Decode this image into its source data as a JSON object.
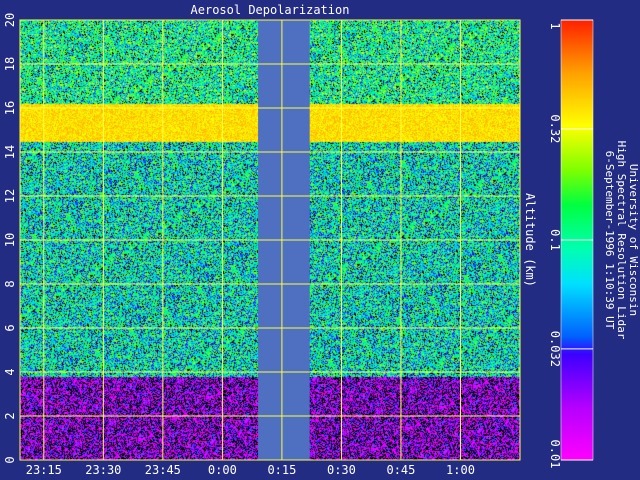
{
  "chart_data": {
    "type": "heatmap",
    "title": "Aerosol Depolarization",
    "ylabel": "Altitude (km)",
    "xlabel": "",
    "y_ticks": [
      "0",
      "2",
      "4",
      "6",
      "8",
      "10",
      "12",
      "14",
      "16",
      "18",
      "20"
    ],
    "ylim": [
      0,
      20
    ],
    "x_ticks": [
      "23:15",
      "23:30",
      "23:45",
      "0:00",
      "0:15",
      "0:30",
      "0:45",
      "1:00"
    ],
    "x_tick_minutes": [
      1395,
      1410,
      1425,
      1440,
      1455,
      1470,
      1485,
      1500
    ],
    "xlim_minutes": [
      1389,
      1515
    ],
    "data_gap_minutes": [
      1449,
      1462
    ],
    "grid": true,
    "colorbar": {
      "scale": "log",
      "range": [
        0.01,
        1
      ],
      "ticks": [
        "0.01",
        "0.032",
        "0.1",
        "0.32",
        "1"
      ],
      "tick_values": [
        0.01,
        0.032,
        0.1,
        0.32,
        1
      ]
    },
    "layers": [
      {
        "name_shown": "",
        "altitude_km": [
          0,
          3.8
        ],
        "depolarization": 0.015
      },
      {
        "name_shown": "",
        "altitude_km": [
          3.8,
          14.5
        ],
        "depolarization": 0.08
      },
      {
        "name_shown": "",
        "altitude_km": [
          14.5,
          16.2
        ],
        "depolarization": 0.4
      },
      {
        "name_shown": "",
        "altitude_km": [
          16.2,
          20
        ],
        "depolarization": 0.1
      }
    ]
  },
  "credits": {
    "line1": "University of Wisconsin",
    "line2": "High Spectral Resolution Lidar",
    "line3": "6-September-1996  1:10:39 UT"
  },
  "colors": {
    "background": "#232c83",
    "grid": "#ffff40",
    "gap": "#4f6fc0"
  }
}
